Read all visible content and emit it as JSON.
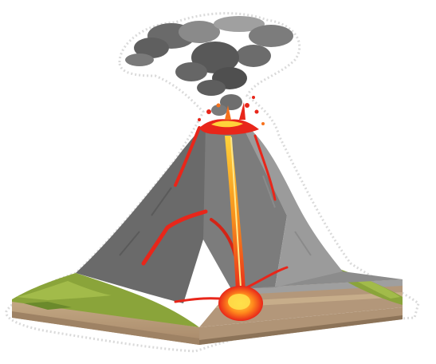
{
  "illustration": {
    "subject": "volcano-cross-section",
    "colors": {
      "smoke_dark": "#5f5f5f",
      "smoke_light": "#9a9a9a",
      "rock_dark": "#5a5a5a",
      "rock_mid": "#7a7a7a",
      "rock_light": "#9b9b9b",
      "lava_red": "#e8261a",
      "lava_orange": "#f7711c",
      "lava_yellow": "#ffd23a",
      "grass": "#8aa43a",
      "grass_dark": "#6b8a2c",
      "soil": "#b89c77",
      "soil_dark": "#8c7358",
      "sticker_outline": "#dadada"
    }
  }
}
